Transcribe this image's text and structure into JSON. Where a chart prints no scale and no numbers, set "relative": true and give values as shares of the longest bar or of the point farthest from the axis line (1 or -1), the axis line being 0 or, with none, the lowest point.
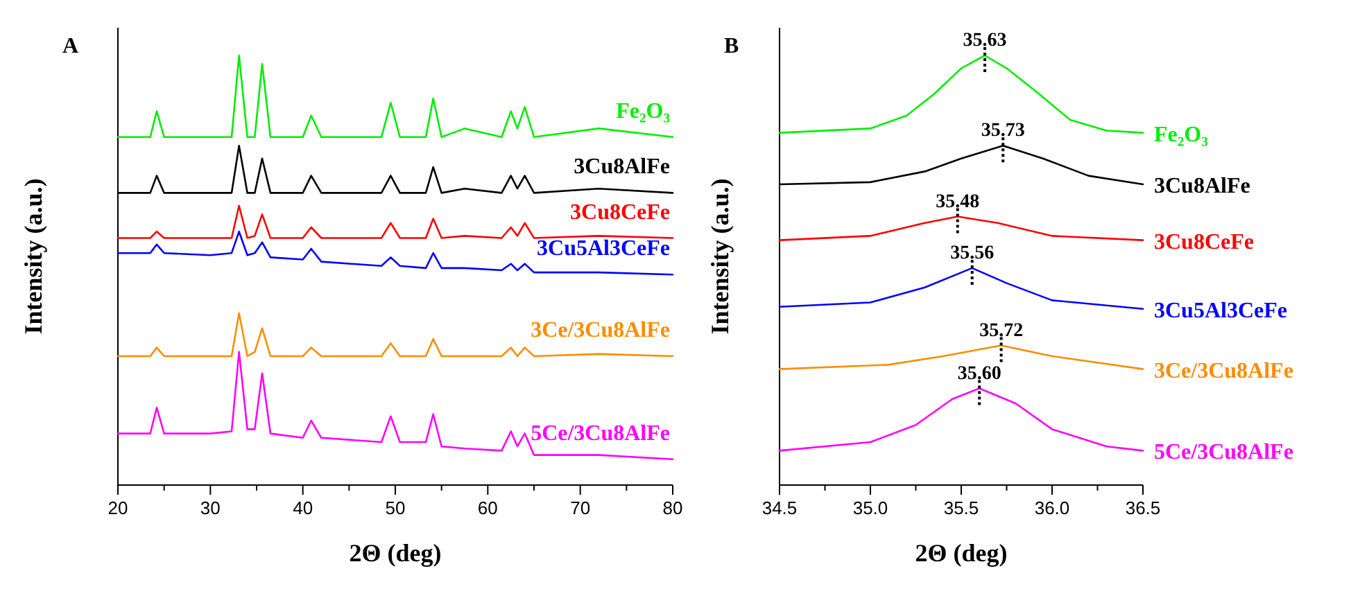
{
  "chart_data": [
    {
      "type": "line",
      "title": "A",
      "xlabel": "2Θ (deg)",
      "ylabel": "Intensity (a.u.)",
      "relative": true,
      "xlim": [
        20,
        80
      ],
      "xticks": [
        20,
        {
          "value": 25,
          "label": null
        },
        30,
        {
          "value": 35,
          "label": null
        },
        40,
        {
          "value": 45,
          "label": null
        },
        50,
        {
          "value": 55,
          "label": null
        },
        60,
        {
          "value": 65,
          "label": null
        },
        70,
        {
          "value": 75,
          "label": null
        },
        80
      ],
      "x": [
        20,
        22,
        23.5,
        24.2,
        25,
        30,
        32.3,
        33.1,
        34,
        34.8,
        35.6,
        36.5,
        40,
        40.9,
        42,
        48.5,
        49.5,
        50.5,
        53.3,
        54.1,
        55,
        57.5,
        61.5,
        62.5,
        63.2,
        64,
        65,
        72,
        80
      ],
      "series": [
        {
          "name": "Fe₂O₃",
          "color": "#00ee00",
          "values": [
            0.81,
            0.81,
            0.81,
            0.87,
            0.81,
            0.81,
            0.81,
            1.0,
            0.81,
            0.81,
            0.98,
            0.81,
            0.81,
            0.86,
            0.81,
            0.81,
            0.89,
            0.81,
            0.81,
            0.9,
            0.81,
            0.83,
            0.81,
            0.87,
            0.83,
            0.88,
            0.81,
            0.83,
            0.81
          ]
        },
        {
          "name": "3Cu8AlFe",
          "color": "#000000",
          "values": [
            0.68,
            0.68,
            0.68,
            0.72,
            0.68,
            0.68,
            0.68,
            0.79,
            0.68,
            0.68,
            0.76,
            0.68,
            0.68,
            0.72,
            0.68,
            0.68,
            0.72,
            0.68,
            0.68,
            0.74,
            0.68,
            0.69,
            0.68,
            0.72,
            0.69,
            0.72,
            0.68,
            0.69,
            0.68
          ]
        },
        {
          "name": "3Cu8CeFe",
          "color": "#ff0000",
          "values": [
            0.575,
            0.575,
            0.575,
            0.59,
            0.575,
            0.575,
            0.575,
            0.65,
            0.575,
            0.58,
            0.63,
            0.575,
            0.575,
            0.6,
            0.575,
            0.575,
            0.61,
            0.575,
            0.575,
            0.62,
            0.575,
            0.58,
            0.575,
            0.6,
            0.58,
            0.61,
            0.575,
            0.58,
            0.575
          ]
        },
        {
          "name": "3Cu5Al3CeFe",
          "color": "#0000ff",
          "values": [
            0.54,
            0.54,
            0.54,
            0.56,
            0.54,
            0.535,
            0.54,
            0.59,
            0.535,
            0.54,
            0.565,
            0.53,
            0.525,
            0.55,
            0.52,
            0.51,
            0.53,
            0.51,
            0.505,
            0.54,
            0.505,
            0.505,
            0.5,
            0.515,
            0.5,
            0.515,
            0.495,
            0.495,
            0.49
          ]
        },
        {
          "name": "3Ce/3Cu8AlFe",
          "color": "#ff8c00",
          "values": [
            0.3,
            0.3,
            0.3,
            0.32,
            0.3,
            0.3,
            0.3,
            0.4,
            0.3,
            0.31,
            0.365,
            0.3,
            0.3,
            0.32,
            0.3,
            0.3,
            0.33,
            0.3,
            0.3,
            0.34,
            0.3,
            0.3,
            0.3,
            0.32,
            0.3,
            0.32,
            0.3,
            0.305,
            0.3
          ]
        },
        {
          "name": "5Ce/3Cu8AlFe",
          "color": "#ff00ff",
          "values": [
            0.12,
            0.12,
            0.12,
            0.18,
            0.12,
            0.12,
            0.125,
            0.31,
            0.13,
            0.13,
            0.26,
            0.12,
            0.11,
            0.15,
            0.11,
            0.1,
            0.16,
            0.1,
            0.1,
            0.165,
            0.09,
            0.085,
            0.08,
            0.125,
            0.09,
            0.12,
            0.07,
            0.07,
            0.06
          ]
        }
      ]
    },
    {
      "type": "line",
      "title": "B",
      "xlabel": "2Θ (deg)",
      "ylabel": "Intensity (a.u.)",
      "relative": true,
      "xlim": [
        34.5,
        36.5
      ],
      "xticks": [
        34.5,
        {
          "value": 34.75,
          "label": null
        },
        {
          "value": 35,
          "label": "35.0"
        },
        {
          "value": 35.25,
          "label": null
        },
        35.5,
        {
          "value": 35.75,
          "label": null
        },
        {
          "value": 36,
          "label": "36.0"
        },
        {
          "value": 36.25,
          "label": null
        },
        36.5
      ],
      "series": [
        {
          "name": "Fe₂O₃",
          "color": "#00ee00",
          "x": [
            34.5,
            35.0,
            35.2,
            35.35,
            35.5,
            35.63,
            35.75,
            35.9,
            36.1,
            36.3,
            36.5
          ],
          "values": [
            0.82,
            0.83,
            0.86,
            0.91,
            0.97,
            1.0,
            0.97,
            0.92,
            0.85,
            0.825,
            0.82
          ]
        },
        {
          "name": "3Cu8AlFe",
          "color": "#000000",
          "x": [
            34.5,
            35.0,
            35.3,
            35.5,
            35.73,
            35.95,
            36.2,
            36.5
          ],
          "values": [
            0.7,
            0.705,
            0.73,
            0.76,
            0.79,
            0.76,
            0.72,
            0.7
          ]
        },
        {
          "name": "3Cu8CeFe",
          "color": "#ff0000",
          "x": [
            34.5,
            35.0,
            35.3,
            35.48,
            35.7,
            36.0,
            36.5
          ],
          "values": [
            0.57,
            0.58,
            0.61,
            0.625,
            0.61,
            0.58,
            0.57
          ]
        },
        {
          "name": "3Cu5Al3CeFe",
          "color": "#0000ff",
          "x": [
            34.5,
            35.0,
            35.3,
            35.56,
            35.75,
            36.0,
            36.5
          ],
          "values": [
            0.415,
            0.425,
            0.46,
            0.505,
            0.47,
            0.43,
            0.41
          ]
        },
        {
          "name": "3Ce/3Cu8AlFe",
          "color": "#ff8c00",
          "x": [
            34.5,
            35.1,
            35.4,
            35.72,
            36.0,
            36.5
          ],
          "values": [
            0.27,
            0.28,
            0.3,
            0.325,
            0.3,
            0.27
          ]
        },
        {
          "name": "5Ce/3Cu8AlFe",
          "color": "#ff00ff",
          "x": [
            34.5,
            35.0,
            35.25,
            35.45,
            35.6,
            35.8,
            36.0,
            36.3,
            36.5
          ],
          "values": [
            0.08,
            0.1,
            0.14,
            0.2,
            0.225,
            0.19,
            0.13,
            0.09,
            0.08
          ]
        }
      ],
      "annotations": [
        {
          "text": "35.63",
          "x": 35.63,
          "y": 1.0
        },
        {
          "text": "35.73",
          "x": 35.73,
          "y": 0.79
        },
        {
          "text": "35.48",
          "x": 35.48,
          "y": 0.625
        },
        {
          "text": "35.56",
          "x": 35.56,
          "y": 0.505
        },
        {
          "text": "35.72",
          "x": 35.72,
          "y": 0.325
        },
        {
          "text": "35.60",
          "x": 35.6,
          "y": 0.225
        }
      ]
    }
  ]
}
